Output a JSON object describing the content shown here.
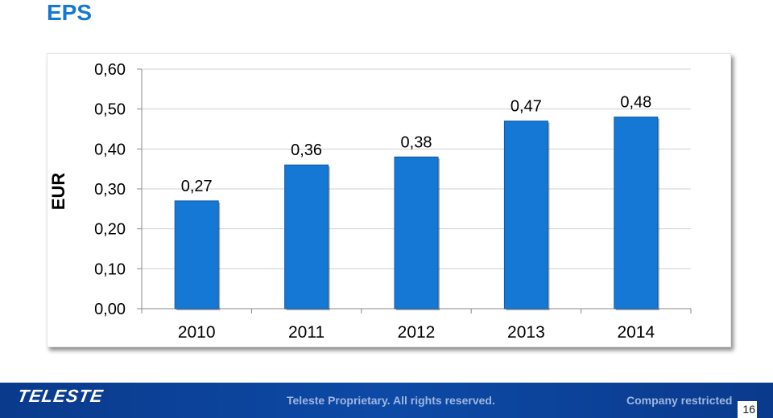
{
  "header": {
    "title": "EPS"
  },
  "footer": {
    "logo": "TELESTE",
    "proprietary": "Teleste Proprietary. All rights reserved.",
    "restricted": "Company restricted",
    "page_number": "16"
  },
  "colors": {
    "title": "#1478d4",
    "bar": "#1478d4",
    "footer": "#0d4aa6"
  },
  "chart_data": {
    "type": "bar",
    "categories": [
      "2010",
      "2011",
      "2012",
      "2013",
      "2014"
    ],
    "values": [
      0.27,
      0.36,
      0.38,
      0.47,
      0.48
    ],
    "data_labels": [
      "0,27",
      "0,36",
      "0,38",
      "0,47",
      "0,48"
    ],
    "title": "",
    "xlabel": "",
    "ylabel": "EUR",
    "ylim": [
      0,
      0.6
    ],
    "yticks": [
      0.0,
      0.1,
      0.2,
      0.3,
      0.4,
      0.5,
      0.6
    ],
    "ytick_labels": [
      "0,00",
      "0,10",
      "0,20",
      "0,30",
      "0,40",
      "0,50",
      "0,60"
    ],
    "grid": true,
    "legend": "none"
  }
}
